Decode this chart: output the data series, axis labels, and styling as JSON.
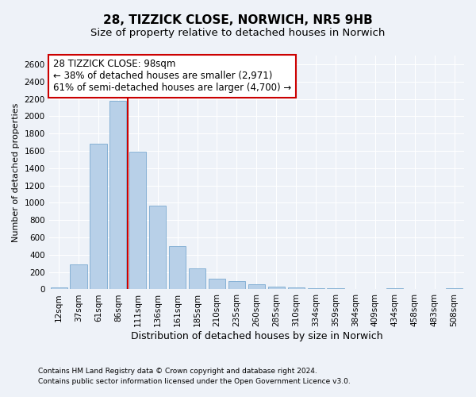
{
  "title": "28, TIZZICK CLOSE, NORWICH, NR5 9HB",
  "subtitle": "Size of property relative to detached houses in Norwich",
  "xlabel": "Distribution of detached houses by size in Norwich",
  "ylabel": "Number of detached properties",
  "footnote1": "Contains HM Land Registry data © Crown copyright and database right 2024.",
  "footnote2": "Contains public sector information licensed under the Open Government Licence v3.0.",
  "annotation_title": "28 TIZZICK CLOSE: 98sqm",
  "annotation_line1": "← 38% of detached houses are smaller (2,971)",
  "annotation_line2": "61% of semi-detached houses are larger (4,700) →",
  "bin_labels": [
    "12sqm",
    "37sqm",
    "61sqm",
    "86sqm",
    "111sqm",
    "136sqm",
    "161sqm",
    "185sqm",
    "210sqm",
    "235sqm",
    "260sqm",
    "285sqm",
    "310sqm",
    "334sqm",
    "359sqm",
    "384sqm",
    "409sqm",
    "434sqm",
    "458sqm",
    "483sqm",
    "508sqm"
  ],
  "bin_values": [
    25,
    290,
    1680,
    2180,
    1590,
    970,
    500,
    240,
    120,
    95,
    55,
    35,
    22,
    15,
    10,
    8,
    5,
    15,
    5,
    5,
    10
  ],
  "bar_color": "#b8d0e8",
  "bar_edge_color": "#7aaad0",
  "vline_color": "#cc0000",
  "vline_bin_index": 3,
  "annotation_box_facecolor": "#ffffff",
  "annotation_box_edgecolor": "#cc0000",
  "ylim": [
    0,
    2700
  ],
  "yticks": [
    0,
    200,
    400,
    600,
    800,
    1000,
    1200,
    1400,
    1600,
    1800,
    2000,
    2200,
    2400,
    2600
  ],
  "background_color": "#eef2f8",
  "plot_bg_color": "#eef2f8",
  "grid_color": "#ffffff",
  "title_fontsize": 11,
  "subtitle_fontsize": 9.5,
  "xlabel_fontsize": 9,
  "ylabel_fontsize": 8,
  "tick_fontsize": 7.5,
  "annotation_fontsize": 8.5,
  "footnote_fontsize": 6.5
}
